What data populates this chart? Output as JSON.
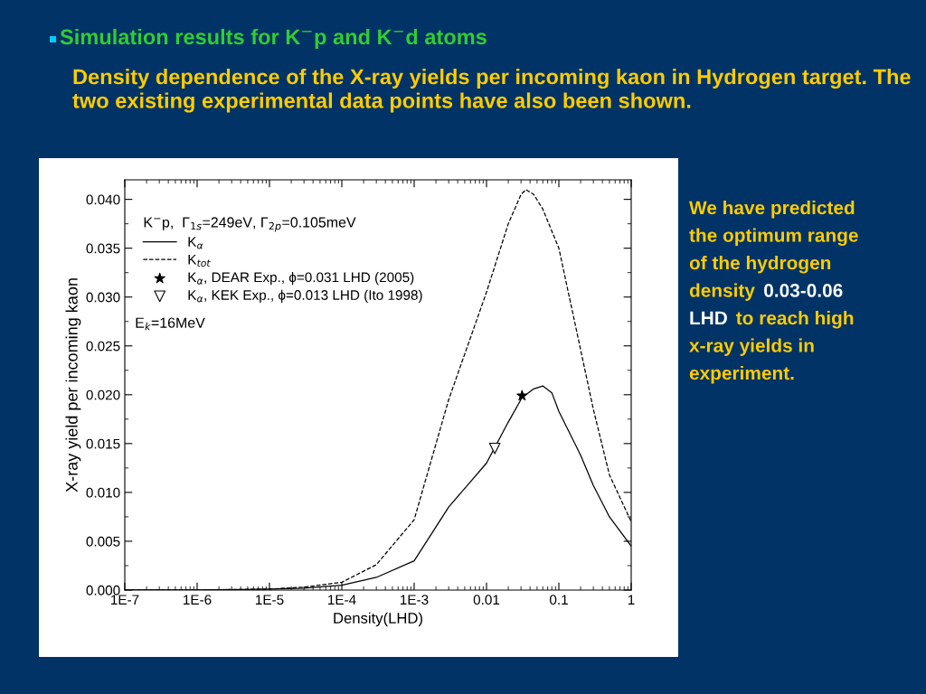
{
  "chart_data": {
    "type": "line",
    "title": "Simulation results for K$^{−}$p and K$^{−}$d atoms",
    "subtitle": "Density dependence of the X-ray yields per incoming kaon in Hydrogen target. The two existing experimental data points have also been shown.",
    "xlabel": "Density(LHD)",
    "ylabel": "X-ray yield per incoming kaon",
    "legend_title": "K$^{−}$p,  Γ$_{1s}$=249eV, Γ$_{2p}$=0.105meV",
    "annotations": [
      "E$_{k}$=16MeV",
      "We have predicted",
      "the optimum range",
      "of the hydrogen",
      "density",
      "0.03-0.06",
      "LHD",
      "to reach high",
      "x-ray yields in",
      "experiment."
    ],
    "series": [
      {
        "name": "K$_{α}$",
        "color": "#000000",
        "line_style": "solid",
        "x": [
          1e-07,
          1e-06,
          1e-05,
          3e-05,
          0.0001,
          0.0003,
          0.001,
          0.003,
          0.01,
          0.02,
          0.031,
          0.045,
          0.06,
          0.08,
          0.1,
          0.2,
          0.3,
          0.5,
          1
        ],
        "values": [
          0.0,
          0.0,
          0.0001,
          0.0002,
          0.0005,
          0.0013,
          0.003,
          0.0085,
          0.013,
          0.0172,
          0.0197,
          0.0206,
          0.0209,
          0.0202,
          0.0183,
          0.0138,
          0.0107,
          0.0075,
          0.0045
        ]
      },
      {
        "name": "K$_{tot}$",
        "color": "#000000",
        "line_style": "dashed",
        "x": [
          1e-07,
          1e-06,
          1e-05,
          3e-05,
          0.0001,
          0.0003,
          0.001,
          0.003,
          0.01,
          0.02,
          0.03,
          0.035,
          0.045,
          0.06,
          0.1,
          0.2,
          0.3,
          0.5,
          1
        ],
        "values": [
          0.0,
          0.0,
          0.0001,
          0.0003,
          0.0008,
          0.0026,
          0.0072,
          0.0195,
          0.0305,
          0.0375,
          0.0405,
          0.041,
          0.0405,
          0.039,
          0.035,
          0.0246,
          0.0185,
          0.0118,
          0.007
        ]
      },
      {
        "name": "K$_{α}$, DEAR Exp., ϕ=0.031 LHD (2005)",
        "type": "scatter",
        "marker": "star",
        "color": "#000000",
        "x": [
          0.031
        ],
        "values": [
          0.0199
        ]
      },
      {
        "name": "K$_{α}$, KEK Exp., ϕ=0.013 LHD (Ito 1998)",
        "type": "scatter",
        "marker": "triangle",
        "color": "#000000",
        "x": [
          0.013
        ],
        "values": [
          0.0145
        ]
      }
    ],
    "log": "x",
    "xlim": [
      1e-07,
      1
    ],
    "xticks": [
      {
        "value": 1e-07,
        "label": "1E-7"
      },
      {
        "value": 1e-06,
        "label": "1E-6"
      },
      {
        "value": 1e-05,
        "label": "1E-5"
      },
      {
        "value": 0.0001,
        "label": "1E-4"
      },
      {
        "value": 0.001,
        "label": "1E-3"
      },
      {
        "value": 0.01,
        "label": "0.01"
      },
      {
        "value": 0.1,
        "label": "0.1"
      },
      {
        "value": 1,
        "label": "1"
      }
    ],
    "ylim": [
      0,
      0.042
    ],
    "yticks": [
      {
        "value": 0,
        "label": "0.000"
      },
      {
        "value": 0.005,
        "label": "0.005"
      },
      {
        "value": 0.01,
        "label": "0.010"
      },
      {
        "value": 0.015,
        "label": "0.015"
      },
      {
        "value": 0.02,
        "label": "0.020"
      },
      {
        "value": 0.025,
        "label": "0.025"
      },
      {
        "value": 0.03,
        "label": "0.030"
      },
      {
        "value": 0.035,
        "label": "0.035"
      },
      {
        "value": 0.04,
        "label": "0.040"
      }
    ],
    "grid": false,
    "legend": "top left"
  }
}
